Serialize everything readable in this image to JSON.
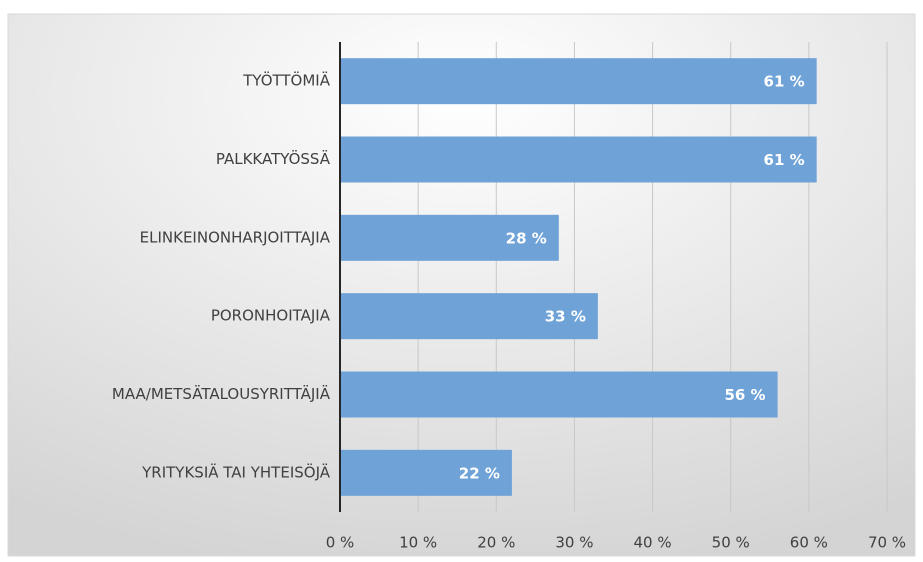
{
  "chart_data": {
    "type": "barh",
    "categories": [
      "TYÖTTÖMIÄ",
      "PALKKATYÖSSÄ",
      "ELINKEINONHARJOITTAJIA",
      "PORONHOITAJIA",
      "MAA/METSÄTALOUSYRITTÄJIÄ",
      "YRITYKSIÄ TAI YHTEISÖJÄ"
    ],
    "values": [
      61,
      61,
      28,
      33,
      56,
      22
    ],
    "value_labels": [
      "61 %",
      "61 %",
      "28 %",
      "33 %",
      "56 %",
      "22 %"
    ],
    "color": "#6fa3d8",
    "xlim": [
      0,
      70
    ],
    "xticks": [
      {
        "value": 0,
        "label": "0 %"
      },
      {
        "value": 10,
        "label": "10 %"
      },
      {
        "value": 20,
        "label": "20 %"
      },
      {
        "value": 30,
        "label": "30 %"
      },
      {
        "value": 40,
        "label": "40 %"
      },
      {
        "value": 50,
        "label": "50 %"
      },
      {
        "value": 60,
        "label": "60 %"
      },
      {
        "value": 70,
        "label": "70 %"
      }
    ],
    "grid": true
  }
}
